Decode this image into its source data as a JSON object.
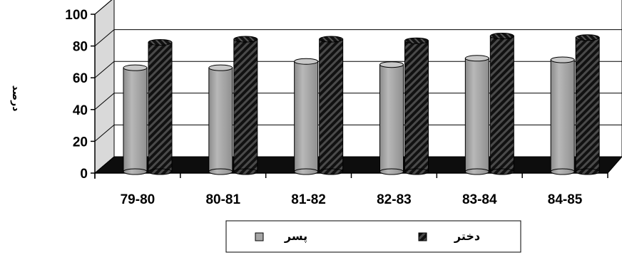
{
  "chart_data": {
    "type": "bar",
    "title": "",
    "xlabel": "",
    "ylabel": "درصد",
    "ylim": [
      0,
      100
    ],
    "yticks": [
      0,
      20,
      40,
      60,
      80,
      100
    ],
    "grid": true,
    "legend_position": "bottom",
    "categories": [
      "79-80",
      "80-81",
      "81-82",
      "82-83",
      "83-84",
      "84-85"
    ],
    "series": [
      {
        "name": "پسر",
        "color": "#a6a6a6",
        "pattern": "solid",
        "values": [
          63,
          63,
          67,
          65,
          69,
          68
        ]
      },
      {
        "name": "دختر",
        "color": "#1a1a1a",
        "pattern": "diagonal-hatch",
        "values": [
          79,
          81,
          81,
          80,
          83,
          82
        ]
      }
    ]
  }
}
